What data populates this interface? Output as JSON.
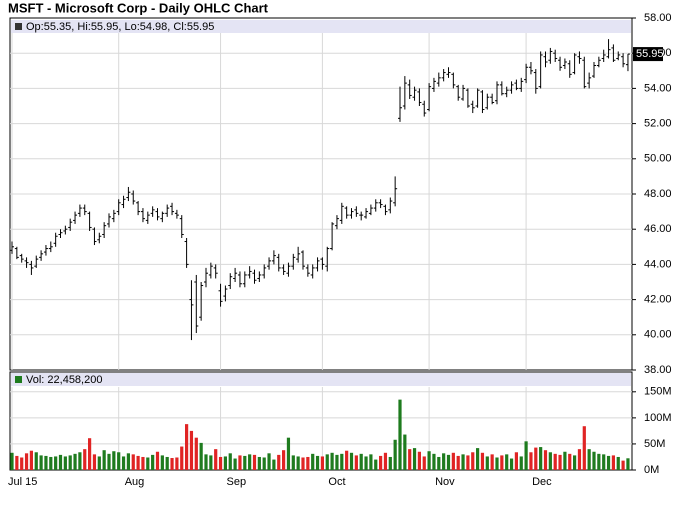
{
  "chart_data": {
    "type": "ohlc",
    "title": "MSFT - Microsoft Corp - Daily OHLC Chart",
    "legend_text": "Op:55.35, Hi:55.95, Lo:54.98, Cl:55.95",
    "categories": [
      "Jul 15",
      null,
      null,
      null,
      null,
      null,
      null,
      null,
      null,
      null,
      null,
      null,
      null,
      null,
      null,
      null,
      null,
      null,
      null,
      null,
      null,
      null,
      "Aug",
      null,
      null,
      null,
      null,
      null,
      null,
      null,
      null,
      null,
      null,
      null,
      null,
      null,
      null,
      null,
      null,
      null,
      null,
      null,
      null,
      "Sep",
      null,
      null,
      null,
      null,
      null,
      null,
      null,
      null,
      null,
      null,
      null,
      null,
      null,
      null,
      null,
      null,
      null,
      null,
      null,
      null,
      "Oct",
      null,
      null,
      null,
      null,
      null,
      null,
      null,
      null,
      null,
      null,
      null,
      null,
      null,
      null,
      null,
      null,
      null,
      null,
      null,
      null,
      null,
      "Nov",
      null,
      null,
      null,
      null,
      null,
      null,
      null,
      null,
      null,
      null,
      null,
      null,
      null,
      null,
      null,
      null,
      null,
      null,
      null,
      "Dec",
      null,
      null,
      null,
      null,
      null,
      null,
      null,
      null,
      null,
      null,
      null,
      null,
      null,
      null,
      null,
      null,
      null,
      null,
      null,
      null,
      null
    ],
    "open": [
      44.8,
      44.9,
      44.5,
      44.2,
      44.0,
      43.9,
      44.4,
      44.7,
      44.9,
      45.2,
      45.7,
      45.9,
      46.1,
      46.5,
      46.9,
      47.2,
      46.9,
      46.0,
      45.4,
      45.7,
      46.3,
      46.6,
      47.0,
      47.4,
      47.8,
      48.0,
      47.5,
      47.0,
      46.5,
      46.9,
      47.0,
      46.6,
      46.9,
      47.3,
      46.9,
      46.6,
      45.3,
      42.0,
      43.0,
      41.0,
      43.0,
      43.4,
      43.8,
      42.5,
      42.2,
      42.8,
      43.2,
      43.4,
      42.9,
      43.4,
      43.5,
      43.2,
      43.4,
      43.9,
      44.2,
      44.4,
      43.8,
      43.5,
      43.9,
      44.3,
      44.7,
      43.8,
      43.4,
      43.8,
      44.3,
      43.9,
      44.9,
      46.2,
      46.5,
      47.2,
      46.8,
      47.1,
      46.8,
      46.7,
      46.9,
      47.2,
      47.5,
      47.3,
      47.1,
      47.5,
      52.3,
      53.0,
      54.2,
      53.5,
      53.8,
      53.1,
      52.8,
      54.0,
      54.3,
      54.6,
      54.8,
      54.8,
      54.1,
      53.4,
      53.9,
      53.1,
      53.0,
      53.8,
      52.9,
      53.5,
      53.3,
      54.2,
      53.7,
      53.9,
      54.3,
      54.0,
      54.5,
      55.2,
      54.9,
      54.1,
      55.8,
      55.6,
      56.0,
      55.6,
      55.3,
      55.4,
      54.9,
      55.8,
      55.6,
      54.3,
      54.7,
      55.3,
      55.7,
      55.8,
      56.3,
      55.7,
      55.8,
      55.35
    ],
    "high": [
      45.3,
      45.0,
      44.6,
      44.4,
      44.2,
      44.5,
      44.8,
      45.1,
      45.3,
      45.8,
      46.0,
      46.2,
      46.6,
      47.0,
      47.4,
      47.4,
      47.0,
      46.1,
      45.8,
      46.4,
      46.9,
      47.1,
      47.7,
      47.9,
      48.4,
      48.2,
      47.6,
      47.2,
      47.0,
      47.3,
      47.2,
      47.0,
      47.4,
      47.5,
      47.1,
      46.8,
      45.5,
      43.1,
      43.4,
      43.0,
      43.8,
      44.1,
      44.0,
      42.9,
      42.8,
      43.5,
      43.8,
      43.6,
      43.6,
      43.9,
      43.7,
      43.6,
      44.0,
      44.4,
      44.8,
      44.6,
      44.0,
      44.1,
      44.6,
      45.0,
      44.8,
      44.0,
      44.0,
      44.4,
      44.4,
      45.0,
      46.4,
      46.8,
      47.5,
      47.3,
      47.2,
      47.3,
      47.0,
      47.2,
      47.4,
      47.7,
      47.7,
      47.4,
      47.8,
      49.0,
      54.1,
      54.7,
      54.5,
      54.1,
      54.0,
      53.3,
      54.3,
      54.6,
      54.9,
      55.1,
      55.2,
      54.9,
      54.2,
      54.2,
      54.0,
      53.3,
      54.0,
      53.9,
      53.7,
      53.7,
      54.4,
      54.4,
      54.1,
      54.4,
      54.5,
      54.6,
      55.4,
      55.5,
      55.1,
      56.1,
      56.1,
      56.3,
      56.2,
      55.8,
      55.7,
      55.6,
      56.0,
      56.1,
      55.8,
      54.9,
      55.5,
      55.8,
      56.2,
      56.8,
      56.5,
      56.1,
      56.0,
      55.95
    ],
    "low": [
      44.6,
      44.3,
      44.1,
      43.8,
      43.4,
      43.8,
      44.2,
      44.5,
      44.7,
      45.0,
      45.5,
      45.7,
      45.9,
      46.3,
      46.7,
      46.8,
      45.9,
      45.1,
      45.2,
      45.5,
      46.1,
      46.4,
      46.8,
      47.2,
      47.6,
      47.4,
      46.8,
      46.4,
      46.3,
      46.7,
      46.5,
      46.4,
      46.7,
      46.8,
      46.6,
      45.5,
      43.8,
      39.7,
      40.1,
      40.8,
      42.7,
      43.2,
      43.2,
      41.6,
      41.9,
      42.6,
      43.0,
      42.7,
      42.7,
      43.2,
      42.9,
      43.0,
      43.2,
      43.7,
      44.0,
      43.6,
      43.4,
      43.3,
      43.7,
      44.1,
      43.7,
      43.3,
      43.2,
      43.6,
      43.7,
      43.6,
      44.8,
      46.0,
      46.3,
      46.6,
      46.6,
      46.7,
      46.5,
      46.6,
      46.8,
      47.0,
      47.2,
      46.8,
      46.9,
      47.3,
      52.1,
      52.8,
      53.4,
      53.3,
      53.0,
      52.4,
      52.7,
      53.8,
      54.1,
      54.4,
      54.6,
      54.0,
      53.3,
      53.3,
      52.9,
      52.6,
      52.9,
      52.6,
      52.8,
      53.1,
      53.1,
      53.6,
      53.5,
      53.7,
      53.9,
      53.8,
      54.3,
      54.8,
      53.7,
      54.0,
      55.2,
      55.4,
      55.5,
      55.0,
      55.1,
      54.6,
      54.8,
      55.4,
      54.0,
      54.0,
      54.6,
      55.2,
      55.5,
      55.7,
      55.5,
      55.6,
      55.2,
      54.98
    ],
    "close": [
      45.0,
      44.4,
      44.3,
      44.1,
      43.8,
      44.3,
      44.6,
      44.9,
      45.0,
      45.6,
      45.8,
      46.0,
      46.4,
      46.8,
      47.2,
      47.0,
      46.1,
      45.3,
      45.6,
      46.2,
      46.7,
      46.9,
      47.5,
      47.7,
      48.1,
      47.6,
      47.0,
      46.6,
      46.8,
      47.1,
      46.7,
      46.9,
      47.2,
      47.0,
      46.8,
      45.7,
      44.0,
      41.7,
      40.5,
      42.8,
      43.5,
      43.9,
      43.5,
      41.9,
      42.6,
      43.3,
      43.5,
      42.9,
      43.4,
      43.6,
      43.1,
      43.4,
      43.8,
      44.2,
      44.5,
      43.8,
      43.6,
      43.9,
      44.4,
      44.6,
      43.9,
      43.5,
      43.8,
      44.2,
      44.0,
      44.9,
      46.3,
      46.6,
      47.3,
      46.8,
      47.0,
      46.9,
      46.8,
      47.0,
      47.2,
      47.5,
      47.4,
      47.0,
      47.6,
      48.3,
      52.9,
      54.3,
      53.6,
      53.9,
      53.2,
      52.6,
      54.1,
      54.4,
      54.6,
      54.9,
      54.9,
      54.2,
      53.5,
      54.0,
      53.0,
      52.9,
      53.9,
      52.8,
      53.5,
      53.2,
      54.2,
      53.7,
      53.9,
      54.2,
      54.0,
      54.4,
      55.2,
      55.0,
      54.0,
      55.9,
      55.5,
      56.1,
      55.7,
      55.2,
      55.5,
      54.8,
      55.9,
      55.7,
      54.1,
      54.6,
      55.3,
      55.6,
      55.9,
      56.2,
      55.6,
      55.9,
      55.4,
      55.95
    ],
    "color": "#000000",
    "ylim": [
      38,
      58
    ],
    "yticks": [
      {
        "value": 38,
        "label": "38.00"
      },
      {
        "value": 40,
        "label": "40.00"
      },
      {
        "value": 42,
        "label": "42.00"
      },
      {
        "value": 44,
        "label": "44.00"
      },
      {
        "value": 46,
        "label": "46.00"
      },
      {
        "value": 48,
        "label": "48.00"
      },
      {
        "value": 50,
        "label": "50.00"
      },
      {
        "value": 52,
        "label": "52.00"
      },
      {
        "value": 54,
        "label": "54.00"
      },
      {
        "value": 56,
        "label": "56.00"
      },
      {
        "value": 58,
        "label": "58.00"
      }
    ],
    "grid": true,
    "volume": {
      "type": "bar",
      "label": "Vol: 22,458,200",
      "up_color": "#1e7b1e",
      "down_color": "#e02424",
      "values": [
        33,
        27,
        24,
        32,
        37,
        34,
        28,
        27,
        25,
        26,
        29,
        26,
        28,
        31,
        34,
        40,
        61,
        30,
        26,
        38,
        31,
        36,
        34,
        26,
        32,
        30,
        27,
        25,
        24,
        29,
        35,
        28,
        25,
        23,
        24,
        45,
        88,
        75,
        62,
        52,
        30,
        28,
        40,
        25,
        26,
        32,
        22,
        28,
        27,
        30,
        29,
        25,
        24,
        32,
        20,
        29,
        38,
        62,
        28,
        26,
        24,
        25,
        31,
        27,
        26,
        30,
        33,
        29,
        31,
        37,
        33,
        28,
        31,
        26,
        30,
        20,
        27,
        33,
        25,
        58,
        135,
        68,
        40,
        42,
        35,
        26,
        36,
        31,
        25,
        32,
        29,
        33,
        27,
        30,
        28,
        34,
        42,
        33,
        26,
        30,
        24,
        28,
        30,
        22,
        34,
        26,
        55,
        34,
        43,
        44,
        38,
        34,
        31,
        29,
        35,
        31,
        28,
        40,
        84,
        40,
        35,
        31,
        30,
        27,
        28,
        25,
        18,
        22.46
      ],
      "ylim": [
        0,
        188
      ],
      "yticks": [
        {
          "value": 0,
          "label": "0M"
        },
        {
          "value": 50,
          "label": "50M"
        },
        {
          "value": 100,
          "label": "100M"
        },
        {
          "value": 150,
          "label": "150M"
        }
      ]
    }
  }
}
